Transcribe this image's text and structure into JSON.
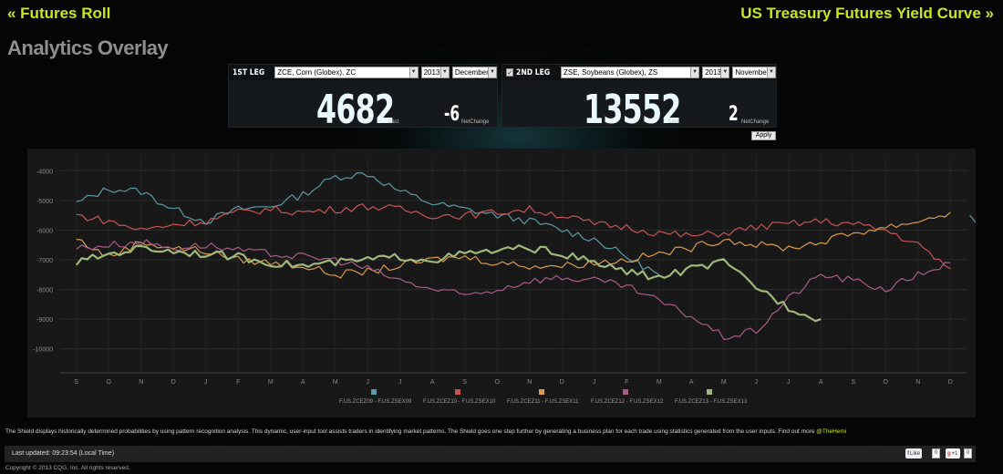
{
  "nav": {
    "left_link": "« Futures Roll",
    "right_link": "US Treasury Futures Yield Curve »"
  },
  "page_title": "Analytics Overlay",
  "leg1": {
    "label": "1ST LEG",
    "contract": "ZCE, Corn (Globex), ZC",
    "year": "2013",
    "month": "December",
    "last_value": "4682",
    "last_label": "Last",
    "net_change": "-6",
    "net_change_label": "NetChange"
  },
  "leg2": {
    "checkbox": "✓",
    "label": "2ND LEG",
    "contract": "ZSE, Soybeans (Globex), ZS",
    "year": "2013",
    "month": "November",
    "last_value": "13552",
    "last_label": "Last",
    "net_change": "2",
    "net_change_label": "NetChange"
  },
  "apply_label": "Apply",
  "description": "The Shield displays historically determined probabilities by using pattern recognition analysis. This dynamic, user-input tool assists traders in identifying market patterns. The Shield goes one step further by generating a business plan for each trade using statistics generated from the user inputs. Find out more ",
  "description_link": "@TheHemi",
  "last_updated": "Last updated: 09:23:54 (Local Time)",
  "social": {
    "facebook_label": "Like",
    "facebook_count": "0",
    "google_label": "+1",
    "google_count": "0"
  },
  "copyright": "Copyright © 2013 CQG, Inc. All rights reserved.",
  "colors": {
    "accent": "#c8e61e",
    "series1": "#5b9aa8",
    "series2": "#c95456",
    "series3": "#d99a4a",
    "series4": "#a85d86",
    "series5": "#9fb77a"
  },
  "chart_data": {
    "type": "line",
    "title": "",
    "xlabel": "",
    "ylabel": "",
    "ylim": [
      -10500,
      -3500
    ],
    "y_ticks": [
      -4000,
      -5000,
      -6000,
      -7000,
      -8000,
      -9000,
      -10000
    ],
    "x_tick_labels": [
      "S",
      "O",
      "N",
      "D",
      "J",
      "F",
      "M",
      "A",
      "M",
      "J",
      "J",
      "A",
      "S",
      "O",
      "N",
      "D",
      "J",
      "F",
      "M",
      "A",
      "M",
      "J",
      "J",
      "A",
      "S",
      "O",
      "N",
      "D"
    ],
    "grid": true,
    "legend_position": "bottom",
    "series": [
      {
        "name": "F.US.ZCEZ09 - F.US.ZSEX09",
        "start_index": 2,
        "values": [
          -5100,
          -4600,
          -4700,
          -5300,
          -5700,
          -5300,
          -5200,
          -4800,
          -4200,
          -4100,
          -4700,
          -5100,
          -5300,
          -5500,
          -5700,
          -6000,
          -6300,
          -6900,
          -7500,
          null,
          null,
          null,
          null,
          null,
          null,
          null,
          null,
          null
        ],
        "tail": [
          -5500,
          -5800,
          -6000
        ]
      },
      {
        "name": "F.US.ZCEZ10 - F.US.ZSEX10",
        "start_index": 2,
        "values": [
          -5500,
          -5700,
          -6000,
          -5800,
          -5700,
          -5400,
          -5300,
          -5400,
          -5300,
          -5200,
          -5300,
          -5500,
          -5500,
          -5400,
          -5300,
          -5500,
          -5800,
          -5900,
          -6100,
          -6200,
          -6100,
          -5900,
          -5800,
          -5700,
          -5800,
          -6000,
          -6500,
          -7300
        ]
      },
      {
        "name": "F.US.ZCEZ11 - F.US.ZSEX11",
        "start_index": 2,
        "values": [
          -6300,
          -6900,
          -6400,
          -6600,
          -6700,
          -7000,
          -7100,
          -7200,
          -7500,
          -7400,
          -7200,
          -7000,
          -6900,
          -7100,
          -7200,
          -7200,
          -7100,
          -7000,
          -6800,
          -6600,
          -6300,
          -6500,
          -6600,
          -6400,
          -6100,
          -5900,
          -5700,
          -5400
        ]
      },
      {
        "name": "F.US.ZCEZ12 - F.US.ZSEX12",
        "start_index": 2,
        "values": [
          -6600,
          -6500,
          -6400,
          -6600,
          -6500,
          -6700,
          -6800,
          -6900,
          -7000,
          -7300,
          -7700,
          -8000,
          -8200,
          -8000,
          -7700,
          -7600,
          -7700,
          -7900,
          -8400,
          -8900,
          -9600,
          -9400,
          -8300,
          -7500,
          -7700,
          -8000,
          -7500,
          -7100
        ]
      },
      {
        "name": "F.US.ZCEZ13 - F.US.ZSEX13",
        "start_index": 2,
        "values": [
          -7100,
          -6800,
          -6600,
          -6700,
          -6800,
          -6900,
          -7100,
          -7200,
          -7100,
          -7000,
          -6900,
          -7000,
          -6800,
          -6700,
          -6600,
          -6800,
          -7100,
          -7400,
          -7600,
          -7300,
          -7100,
          -7900,
          -8600,
          -9000,
          null,
          null,
          null,
          null
        ]
      }
    ]
  }
}
